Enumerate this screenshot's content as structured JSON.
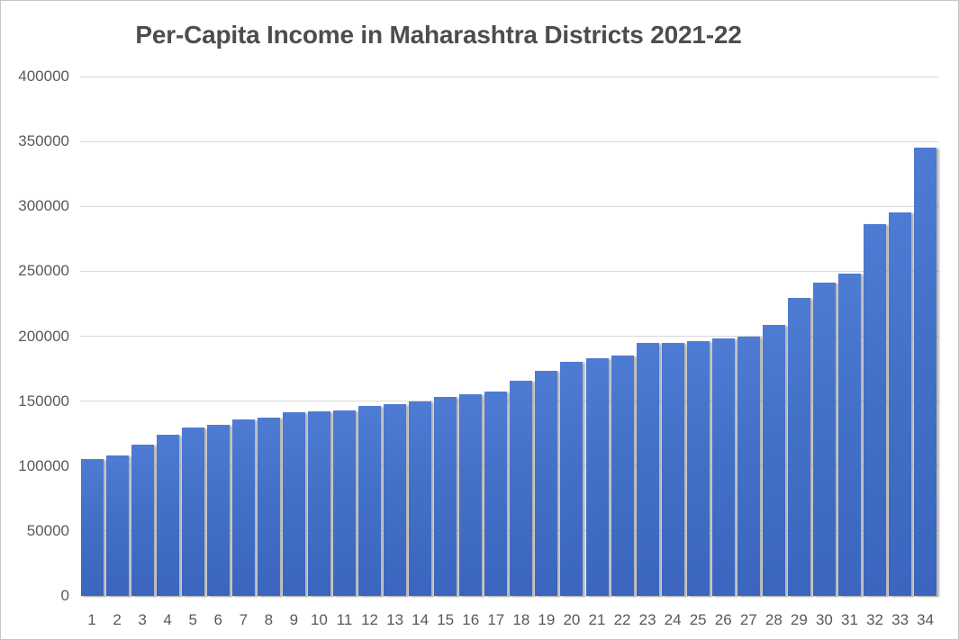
{
  "window": {
    "background": "#ffffff",
    "border_color": "#c6c6c6"
  },
  "chart_data": {
    "type": "bar",
    "title": "Per-Capita Income in Maharashtra Districts 2021-22",
    "xlabel": "",
    "ylabel": "",
    "categories": [
      "1",
      "2",
      "3",
      "4",
      "5",
      "6",
      "7",
      "8",
      "9",
      "10",
      "11",
      "12",
      "13",
      "14",
      "15",
      "16",
      "17",
      "18",
      "19",
      "20",
      "21",
      "22",
      "23",
      "24",
      "25",
      "26",
      "27",
      "28",
      "29",
      "30",
      "31",
      "32",
      "33",
      "34"
    ],
    "values": [
      105500,
      108500,
      116500,
      124000,
      129500,
      132000,
      136000,
      137500,
      141500,
      142000,
      142500,
      146500,
      147500,
      149500,
      153500,
      155500,
      157500,
      166000,
      173000,
      180500,
      183000,
      185000,
      194500,
      194500,
      196500,
      198000,
      199500,
      209000,
      229500,
      241500,
      248000,
      286000,
      295000,
      345000
    ],
    "ylim": [
      0,
      400000
    ],
    "ytick_step": 50000,
    "yticks": [
      400000,
      350000,
      300000,
      250000,
      200000,
      150000,
      100000,
      50000,
      0
    ],
    "grid": true,
    "legend": false,
    "colors": {
      "bar_top": "#4e7bd3",
      "bar_bottom": "#3b65be",
      "gridline": "#d9d9d9",
      "axis_text": "#595959",
      "title_text": "#4d4d4d"
    }
  }
}
